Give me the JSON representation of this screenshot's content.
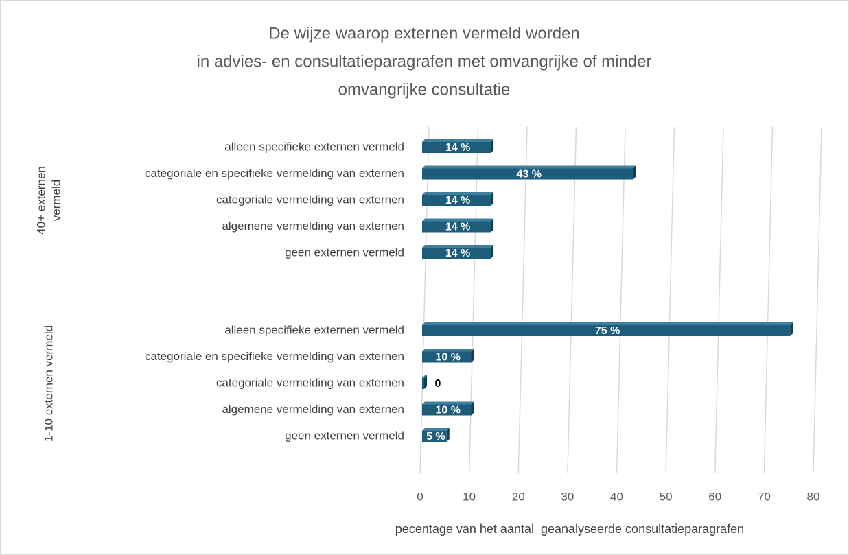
{
  "chart_data": {
    "type": "bar",
    "title": [
      "De wijze waarop externen vermeld worden",
      "in advies- en consultatieparagrafen met omvangrijke of minder",
      "omvangrijke consultatie"
    ],
    "groups": [
      {
        "label": [
          "40+ externen",
          "vermeld"
        ],
        "categories": [
          "alleen specifieke externen vermeld",
          "categoriale en specifieke vermelding van externen",
          "categoriale vermelding van externen",
          "algemene vermelding van externen",
          "geen externen vermeld"
        ],
        "values": [
          14,
          43,
          14,
          14,
          14
        ],
        "value_labels": [
          "14 %",
          "43 %",
          "14 %",
          "14 %",
          "14 %"
        ]
      },
      {
        "label": [
          "1-10 externen vermeld"
        ],
        "categories": [
          "alleen specifieke externen vermeld",
          "categoriale en specifieke vermelding van externen",
          "categoriale vermelding van externen",
          "algemene vermelding van externen",
          "geen externen vermeld"
        ],
        "values": [
          75,
          10,
          0,
          10,
          5
        ],
        "value_labels": [
          "75 %",
          "10 %",
          "0",
          "10 %",
          "5 %"
        ]
      }
    ],
    "color": "#1f5c7a",
    "xlim": [
      0,
      80
    ],
    "xticks": [
      0,
      10,
      20,
      30,
      40,
      50,
      60,
      70,
      80
    ],
    "xlabel": "pecentage van het aantal  geanalyseerde consultatieparagrafen",
    "grid": true
  }
}
